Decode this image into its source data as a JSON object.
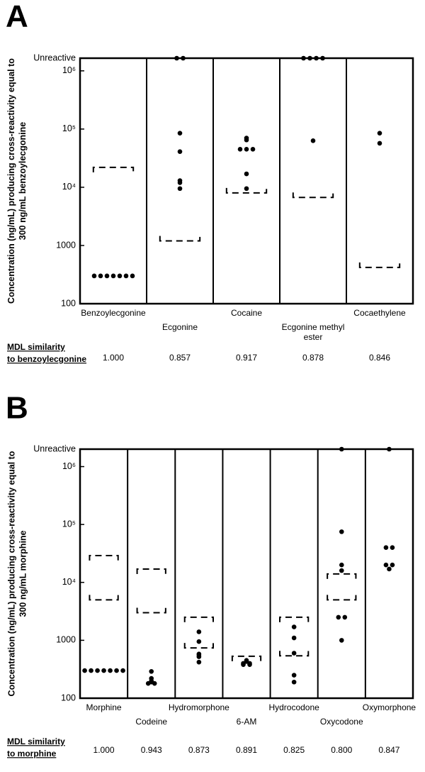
{
  "chart_data": [
    {
      "type": "strip",
      "panel": "A",
      "y_label": "Concentration (ng/mL) producing cross-reactivity equal to 300 ng/mL benzoylecgonine",
      "log_scale": true,
      "color": "#000000",
      "ylim": [
        100,
        1650000
      ],
      "yticks": [
        100,
        1000,
        {
          "value": 10000,
          "label": "10⁴"
        },
        {
          "value": 100000,
          "label": "10⁵"
        },
        {
          "value": 1000000,
          "label": "10⁶"
        },
        {
          "value": 1650000,
          "label": "Unreactive"
        }
      ],
      "categories": [
        "Benzoylecgonine",
        "Ecgonine",
        "Cocaine",
        "Ecgonine methyl ester",
        "Cocaethylene"
      ],
      "values": [
        [
          300,
          300,
          300,
          300,
          300,
          300,
          300
        ],
        [
          1650000,
          1650000,
          85000,
          41000,
          13000,
          12000,
          9500
        ],
        [
          70000,
          65000,
          45000,
          45000,
          45000,
          17000,
          9500
        ],
        [
          1650000,
          1650000,
          1650000,
          1650000,
          63000
        ],
        [
          85000,
          57000
        ]
      ],
      "threshold_upper": [
        22000,
        null,
        null,
        null,
        null
      ],
      "threshold_lower": [
        null,
        1200,
        8000,
        6700,
        420
      ],
      "similarity_label": [
        "MDL similarity",
        "to benzoylecgonine"
      ],
      "similarity": [
        "1.000",
        "0.857",
        "0.917",
        "0.878",
        "0.846"
      ]
    },
    {
      "type": "strip",
      "panel": "B",
      "y_label": "Concentration (ng/mL) producing cross-reactivity equal to 300 ng/mL morphine",
      "log_scale": true,
      "color": "#000000",
      "ylim": [
        100,
        2000000
      ],
      "yticks": [
        100,
        1000,
        {
          "value": 10000,
          "label": "10⁴"
        },
        {
          "value": 100000,
          "label": "10⁵"
        },
        {
          "value": 1000000,
          "label": "10⁶"
        },
        {
          "value": 2000000,
          "label": "Unreactive"
        }
      ],
      "categories": [
        "Morphine",
        "Codeine",
        "Hydromorphone",
        "6-AM",
        "Hydrocodone",
        "Oxycodone",
        "Oxymorphone"
      ],
      "values": [
        [
          300,
          300,
          300,
          300,
          300,
          300,
          300
        ],
        [
          200,
          180,
          180,
          290,
          190,
          220
        ],
        [
          1400,
          950,
          580,
          520,
          420,
          560
        ],
        [
          430,
          400,
          380,
          380,
          400,
          450
        ],
        [
          1700,
          1100,
          600,
          250,
          190
        ],
        [
          2000000,
          75000,
          20000,
          16000,
          2500,
          2500,
          1000
        ],
        [
          2000000,
          40000,
          40000,
          20000,
          20000,
          17000
        ]
      ],
      "threshold_upper": [
        29000,
        17000,
        2500,
        530,
        2500,
        14000,
        null
      ],
      "threshold_lower": [
        5000,
        3000,
        740,
        null,
        540,
        5000,
        null
      ],
      "similarity_label": [
        "MDL similarity",
        "to morphine"
      ],
      "similarity": [
        "1.000",
        "0.943",
        "0.873",
        "0.891",
        "0.825",
        "0.800",
        "0.847"
      ]
    }
  ]
}
